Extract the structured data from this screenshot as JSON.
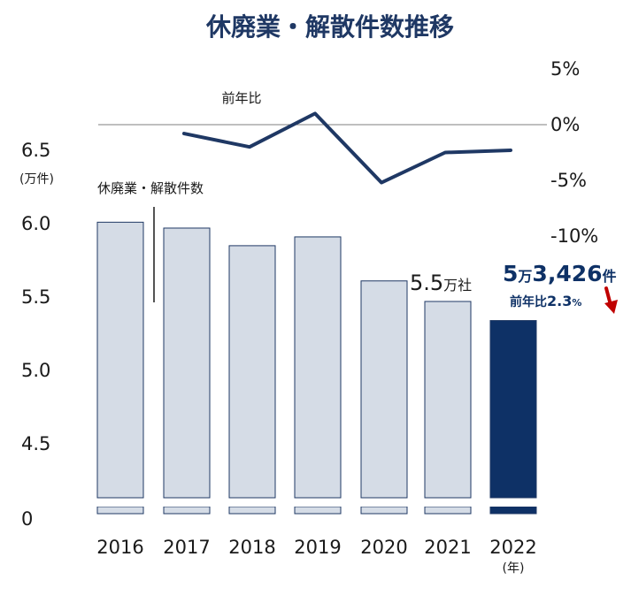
{
  "chart_data": {
    "type": "bar",
    "title": "休廃業・解散件数推移",
    "categories": [
      "2016",
      "2017",
      "2018",
      "2019",
      "2020",
      "2021",
      "2022"
    ],
    "x_unit": "(年)",
    "series": [
      {
        "name": "休廃業・解散件数",
        "type": "bar",
        "unit": "(万件)",
        "values": [
          6.01,
          5.97,
          5.85,
          5.91,
          5.61,
          5.47,
          5.34
        ]
      },
      {
        "name": "前年比",
        "type": "line",
        "values": [
          null,
          -0.8,
          -2.0,
          1.0,
          -5.2,
          -2.5,
          -2.3
        ]
      }
    ],
    "y_left": {
      "ticks": [
        "0",
        "4.5",
        "5.0",
        "5.5",
        "6.0",
        "6.5"
      ],
      "range": [
        4.5,
        6.5
      ],
      "axis_break": true
    },
    "y_right": {
      "ticks": [
        "5%",
        "0%",
        "-5%",
        "-10%"
      ],
      "range": [
        -10,
        5
      ]
    },
    "annotations": {
      "value_2021": {
        "number": "5.5",
        "unit": "万社"
      },
      "value_2022": {
        "number_a": "5",
        "unit_a": "万",
        "number_b": "3,426",
        "unit_b": "件"
      },
      "change_2022": {
        "prefix": "前年比",
        "value": "2.3",
        "unit": "%"
      }
    },
    "colors": {
      "bar": "#d5dce6",
      "bar_border": "#1f3864",
      "bar_highlight": "#0e3166",
      "line": "#1f3864",
      "title": "#1f3864",
      "arrow": "#c00000"
    }
  }
}
